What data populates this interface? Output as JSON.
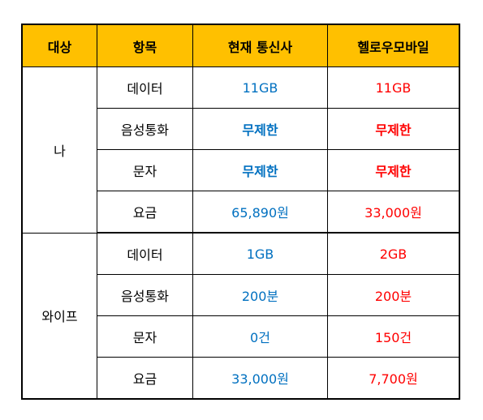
{
  "headers": [
    "대상",
    "항목",
    "현재 통신사",
    "헬로우모바일"
  ],
  "groups": [
    {
      "target": "나",
      "rows": [
        {
          "item": "데이터",
          "current": "11GB",
          "hello": "11GB"
        },
        {
          "item": "음성통화",
          "current": "무제한",
          "hello": "무제한"
        },
        {
          "item": "문자",
          "current": "무제한",
          "hello": "무제한"
        },
        {
          "item": "요금",
          "current": "65,890원",
          "hello": "33,000원"
        }
      ]
    },
    {
      "target": "와이프",
      "rows": [
        {
          "item": "데이터",
          "current": "1GB",
          "hello": "2GB"
        },
        {
          "item": "음성통화",
          "current": "200분",
          "hello": "200분"
        },
        {
          "item": "문자",
          "current": "0건",
          "hello": "150건"
        },
        {
          "item": "요금",
          "current": "33,000원",
          "hello": "7,700원"
        }
      ]
    }
  ],
  "colors": {
    "header_bg": "#ffc000",
    "current_text": "#0070c0",
    "hello_text": "#ff0000"
  }
}
